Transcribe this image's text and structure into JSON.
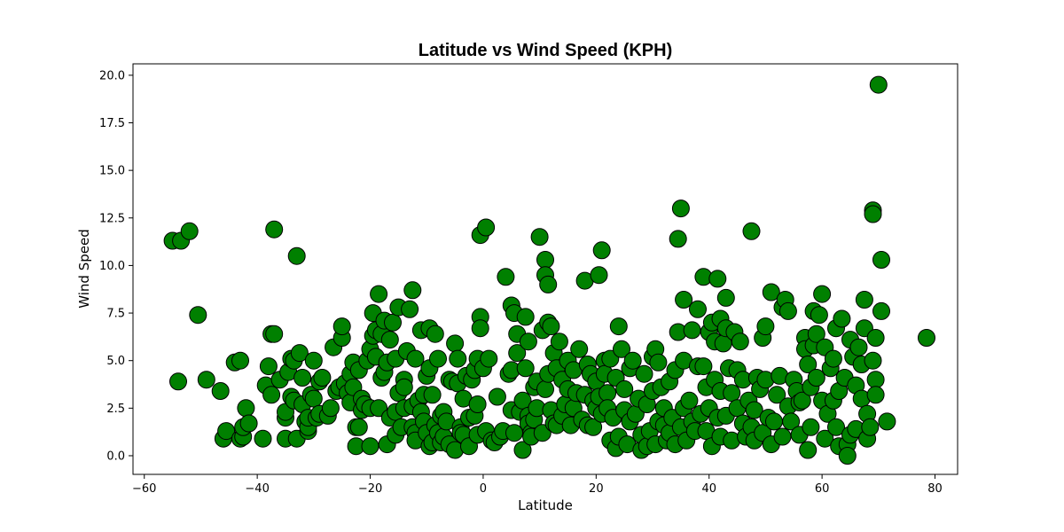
{
  "chart_data": {
    "type": "scatter",
    "title": "Latitude vs Wind Speed (KPH)",
    "xlabel": "Latitude",
    "ylabel": "Wind Speed",
    "xlim": [
      -62,
      84
    ],
    "ylim": [
      -0.98,
      20.6
    ],
    "x_ticks": [
      -60,
      -40,
      -20,
      0,
      20,
      40,
      60,
      80
    ],
    "x_tick_labels": [
      "−60",
      "−40",
      "−20",
      "0",
      "20",
      "40",
      "60",
      "80"
    ],
    "y_ticks": [
      0,
      2.5,
      5,
      7.5,
      10,
      12.5,
      15,
      17.5,
      20
    ],
    "y_tick_labels": [
      "0.0",
      "2.5",
      "5.0",
      "7.5",
      "10.0",
      "12.5",
      "15.0",
      "17.5",
      "20.0"
    ],
    "grid": false,
    "marker_color": "#008000",
    "marker_edge": "#000000",
    "points": [
      [
        -55,
        11.3
      ],
      [
        -53.5,
        11.3
      ],
      [
        -52,
        11.8
      ],
      [
        -54,
        3.9
      ],
      [
        -50.5,
        7.4
      ],
      [
        -49,
        4.0
      ],
      [
        -46.5,
        3.4
      ],
      [
        -46,
        0.9
      ],
      [
        -45.5,
        1.3
      ],
      [
        -44,
        4.9
      ],
      [
        -43,
        5.0
      ],
      [
        -43,
        0.9
      ],
      [
        -42.5,
        1.0
      ],
      [
        -42.5,
        1.5
      ],
      [
        -42,
        2.5
      ],
      [
        -41.5,
        1.7
      ],
      [
        -39,
        0.9
      ],
      [
        -38.5,
        3.7
      ],
      [
        -38,
        4.7
      ],
      [
        -37.5,
        6.4
      ],
      [
        -37,
        11.9
      ],
      [
        -37,
        6.4
      ],
      [
        -37.5,
        3.2
      ],
      [
        -36,
        4.0
      ],
      [
        -35,
        0.9
      ],
      [
        -35,
        2.0
      ],
      [
        -35,
        2.3
      ],
      [
        -34.5,
        4.4
      ],
      [
        -34,
        5.1
      ],
      [
        -34,
        3.1
      ],
      [
        -33.5,
        2.9
      ],
      [
        -33.5,
        5.0
      ],
      [
        -33,
        10.5
      ],
      [
        -33,
        0.9
      ],
      [
        -32.5,
        5.4
      ],
      [
        -32,
        2.7
      ],
      [
        -32,
        4.1
      ],
      [
        -31.5,
        1.8
      ],
      [
        -31,
        1.3
      ],
      [
        -31,
        1.5
      ],
      [
        -31,
        2.0
      ],
      [
        -30.5,
        3.2
      ],
      [
        -30,
        3.0
      ],
      [
        -30,
        5.0
      ],
      [
        -29.5,
        2.0
      ],
      [
        -29,
        2.2
      ],
      [
        -29,
        3.9
      ],
      [
        -28.5,
        4.1
      ],
      [
        -27.5,
        2.1
      ],
      [
        -27,
        2.5
      ],
      [
        -26.5,
        5.7
      ],
      [
        -26,
        3.4
      ],
      [
        -25.5,
        3.6
      ],
      [
        -25,
        6.2
      ],
      [
        -25,
        6.8
      ],
      [
        -24.5,
        3.8
      ],
      [
        -24,
        3.3
      ],
      [
        -23.5,
        2.8
      ],
      [
        -23.5,
        4.3
      ],
      [
        -23,
        4.9
      ],
      [
        -23,
        3.6
      ],
      [
        -22.5,
        1.5
      ],
      [
        -22.5,
        0.5
      ],
      [
        -22,
        1.5
      ],
      [
        -22,
        4.5
      ],
      [
        -21.5,
        3.0
      ],
      [
        -21.5,
        2.4
      ],
      [
        -21,
        2.7
      ],
      [
        -20.5,
        5.0
      ],
      [
        -20,
        0.5
      ],
      [
        -20,
        2.5
      ],
      [
        -20,
        5.6
      ],
      [
        -19.5,
        7.5
      ],
      [
        -19.5,
        6.3
      ],
      [
        -19,
        5.2
      ],
      [
        -19,
        6.6
      ],
      [
        -18.5,
        8.5
      ],
      [
        -18.5,
        2.5
      ],
      [
        -18,
        4.1
      ],
      [
        -18,
        6.4
      ],
      [
        -17.5,
        4.4
      ],
      [
        -17.5,
        7.1
      ],
      [
        -17,
        4.9
      ],
      [
        -17,
        0.6
      ],
      [
        -16.5,
        2.0
      ],
      [
        -16.5,
        6.1
      ],
      [
        -16,
        7.0
      ],
      [
        -15.5,
        2.3
      ],
      [
        -15.5,
        5.1
      ],
      [
        -15.5,
        1.1
      ],
      [
        -15,
        7.8
      ],
      [
        -15,
        3.3
      ],
      [
        -14.5,
        1.5
      ],
      [
        -14,
        2.5
      ],
      [
        -14,
        4.0
      ],
      [
        -14,
        3.6
      ],
      [
        -13.5,
        5.5
      ],
      [
        -13,
        7.7
      ],
      [
        -12.5,
        8.7
      ],
      [
        -12.5,
        2.6
      ],
      [
        -12.5,
        1.5
      ],
      [
        -12,
        1.2
      ],
      [
        -12,
        0.8
      ],
      [
        -12,
        5.1
      ],
      [
        -11.5,
        2.9
      ],
      [
        -11,
        6.6
      ],
      [
        -11,
        2.3
      ],
      [
        -10.5,
        3.2
      ],
      [
        -10.5,
        1.8
      ],
      [
        -10,
        4.2
      ],
      [
        -10,
        1.2
      ],
      [
        -9.5,
        0.5
      ],
      [
        -9.5,
        4.6
      ],
      [
        -9.5,
        6.7
      ],
      [
        -9,
        3.2
      ],
      [
        -9,
        0.7
      ],
      [
        -8.5,
        1.6
      ],
      [
        -8.5,
        6.4
      ],
      [
        -8,
        5.1
      ],
      [
        -8,
        1.2
      ],
      [
        -7.5,
        2.1
      ],
      [
        -7.5,
        0.7
      ],
      [
        -7,
        2.3
      ],
      [
        -7,
        1.0
      ],
      [
        -6.5,
        1.8
      ],
      [
        -6,
        4.0
      ],
      [
        -6,
        0.6
      ],
      [
        -5.5,
        3.9
      ],
      [
        -5,
        5.9
      ],
      [
        -5,
        0.3
      ],
      [
        -4.5,
        5.1
      ],
      [
        -4.5,
        3.8
      ],
      [
        -4,
        1.5
      ],
      [
        -4,
        1.2
      ],
      [
        -3.5,
        3.0
      ],
      [
        -3.5,
        1.1
      ],
      [
        -3,
        4.2
      ],
      [
        -2.5,
        2.0
      ],
      [
        -2.5,
        0.5
      ],
      [
        -2,
        4.0
      ],
      [
        -1.5,
        4.5
      ],
      [
        -1.5,
        2.1
      ],
      [
        -1,
        2.7
      ],
      [
        -1,
        5.1
      ],
      [
        -1,
        1.1
      ],
      [
        -0.5,
        11.6
      ],
      [
        -0.5,
        7.3
      ],
      [
        -0.5,
        6.7
      ],
      [
        0,
        4.6
      ],
      [
        0.5,
        12.0
      ],
      [
        0.5,
        1.3
      ],
      [
        1,
        5.1
      ],
      [
        1.5,
        0.8
      ],
      [
        2,
        0.7
      ],
      [
        2.5,
        3.1
      ],
      [
        3,
        1.0
      ],
      [
        3.5,
        1.3
      ],
      [
        4,
        9.4
      ],
      [
        4.5,
        4.3
      ],
      [
        5,
        2.4
      ],
      [
        5,
        4.5
      ],
      [
        5,
        7.9
      ],
      [
        5.5,
        1.2
      ],
      [
        5.5,
        7.5
      ],
      [
        6,
        6.4
      ],
      [
        6,
        5.4
      ],
      [
        6.5,
        2.3
      ],
      [
        7,
        2.9
      ],
      [
        7,
        0.3
      ],
      [
        7.5,
        4.6
      ],
      [
        7.5,
        7.3
      ],
      [
        8,
        2.1
      ],
      [
        8,
        1.7
      ],
      [
        8,
        6.0
      ],
      [
        8.5,
        1.2
      ],
      [
        8.5,
        1.0
      ],
      [
        9,
        3.6
      ],
      [
        9,
        1.9
      ],
      [
        9.5,
        2.5
      ],
      [
        9.5,
        3.9
      ],
      [
        10,
        11.5
      ],
      [
        10.5,
        6.6
      ],
      [
        10.5,
        1.2
      ],
      [
        11,
        10.3
      ],
      [
        11,
        9.5
      ],
      [
        11,
        3.5
      ],
      [
        11.5,
        7.0
      ],
      [
        11.5,
        9.0
      ],
      [
        11.5,
        4.3
      ],
      [
        12,
        6.8
      ],
      [
        12,
        2.4
      ],
      [
        12.5,
        1.7
      ],
      [
        12.5,
        5.4
      ],
      [
        13,
        4.6
      ],
      [
        13,
        1.6
      ],
      [
        13.5,
        6.0
      ],
      [
        14,
        4.0
      ],
      [
        14,
        2.1
      ],
      [
        14.5,
        2.7
      ],
      [
        15,
        5.0
      ],
      [
        15,
        3.5
      ],
      [
        15.5,
        1.6
      ],
      [
        16,
        2.5
      ],
      [
        16,
        4.5
      ],
      [
        16.5,
        3.3
      ],
      [
        17,
        5.6
      ],
      [
        17.5,
        1.9
      ],
      [
        18,
        9.2
      ],
      [
        18,
        3.2
      ],
      [
        18.5,
        4.8
      ],
      [
        18.5,
        1.6
      ],
      [
        19,
        4.3
      ],
      [
        19.5,
        2.9
      ],
      [
        19.5,
        1.5
      ],
      [
        20,
        2.5
      ],
      [
        20,
        3.9
      ],
      [
        20.5,
        9.5
      ],
      [
        20.5,
        3.1
      ],
      [
        21,
        10.8
      ],
      [
        21,
        2.2
      ],
      [
        21.5,
        5.0
      ],
      [
        21.5,
        4.3
      ],
      [
        22,
        3.3
      ],
      [
        22,
        2.5
      ],
      [
        22.5,
        5.1
      ],
      [
        22.5,
        0.8
      ],
      [
        23,
        2.0
      ],
      [
        23.5,
        4.1
      ],
      [
        23.5,
        0.4
      ],
      [
        24,
        6.8
      ],
      [
        24,
        1.0
      ],
      [
        24.5,
        5.6
      ],
      [
        25,
        3.5
      ],
      [
        25,
        2.4
      ],
      [
        25.5,
        0.6
      ],
      [
        26,
        4.6
      ],
      [
        26,
        1.8
      ],
      [
        26.5,
        5.0
      ],
      [
        27,
        2.2
      ],
      [
        27.5,
        3.0
      ],
      [
        28,
        0.3
      ],
      [
        28,
        1.1
      ],
      [
        28.5,
        4.3
      ],
      [
        29,
        2.7
      ],
      [
        29,
        0.5
      ],
      [
        29.5,
        1.3
      ],
      [
        30,
        5.2
      ],
      [
        30,
        3.4
      ],
      [
        30.5,
        5.6
      ],
      [
        30.5,
        0.6
      ],
      [
        31,
        1.8
      ],
      [
        31,
        4.9
      ],
      [
        31.5,
        3.6
      ],
      [
        32,
        2.5
      ],
      [
        32,
        1.6
      ],
      [
        32.5,
        0.8
      ],
      [
        33,
        3.9
      ],
      [
        33,
        1.2
      ],
      [
        33.5,
        2.0
      ],
      [
        34,
        4.5
      ],
      [
        34,
        0.6
      ],
      [
        34.5,
        11.4
      ],
      [
        34.5,
        6.5
      ],
      [
        35,
        13.0
      ],
      [
        35,
        1.5
      ],
      [
        35.5,
        8.2
      ],
      [
        35.5,
        5.0
      ],
      [
        35.5,
        2.5
      ],
      [
        36,
        0.8
      ],
      [
        36.5,
        2.9
      ],
      [
        37,
        6.6
      ],
      [
        37,
        1.8
      ],
      [
        37.5,
        1.3
      ],
      [
        38,
        7.7
      ],
      [
        38,
        4.7
      ],
      [
        38.5,
        2.2
      ],
      [
        39,
        9.4
      ],
      [
        39,
        4.7
      ],
      [
        39.5,
        3.6
      ],
      [
        39.5,
        1.3
      ],
      [
        40,
        2.5
      ],
      [
        40,
        6.5
      ],
      [
        40.5,
        7.0
      ],
      [
        40.5,
        0.5
      ],
      [
        41,
        6.0
      ],
      [
        41,
        4.0
      ],
      [
        41.5,
        9.3
      ],
      [
        41.5,
        2.0
      ],
      [
        42,
        7.2
      ],
      [
        42,
        3.4
      ],
      [
        42,
        1.0
      ],
      [
        42.5,
        5.9
      ],
      [
        43,
        8.3
      ],
      [
        43,
        6.7
      ],
      [
        43,
        2.1
      ],
      [
        43.5,
        4.6
      ],
      [
        44,
        3.3
      ],
      [
        44,
        0.8
      ],
      [
        44.5,
        6.5
      ],
      [
        45,
        4.5
      ],
      [
        45,
        2.5
      ],
      [
        45.5,
        6.0
      ],
      [
        46,
        1.7
      ],
      [
        46,
        4.0
      ],
      [
        46.5,
        1.0
      ],
      [
        47,
        2.9
      ],
      [
        47.5,
        11.8
      ],
      [
        47.5,
        1.5
      ],
      [
        48,
        0.8
      ],
      [
        48,
        2.4
      ],
      [
        48.5,
        4.1
      ],
      [
        49,
        3.5
      ],
      [
        49.5,
        6.2
      ],
      [
        49.5,
        1.2
      ],
      [
        50,
        6.8
      ],
      [
        50,
        4.0
      ],
      [
        50.5,
        2.0
      ],
      [
        51,
        0.6
      ],
      [
        51,
        8.6
      ],
      [
        51.5,
        1.8
      ],
      [
        52,
        3.2
      ],
      [
        52.5,
        4.2
      ],
      [
        53,
        7.8
      ],
      [
        53,
        1.0
      ],
      [
        53.5,
        8.2
      ],
      [
        54,
        2.6
      ],
      [
        54,
        7.6
      ],
      [
        54.5,
        1.8
      ],
      [
        55,
        4.0
      ],
      [
        55.5,
        3.4
      ],
      [
        56,
        2.8
      ],
      [
        56,
        1.1
      ],
      [
        56.5,
        2.9
      ],
      [
        57,
        6.2
      ],
      [
        57,
        5.6
      ],
      [
        57.5,
        4.8
      ],
      [
        57.5,
        0.3
      ],
      [
        58,
        1.5
      ],
      [
        58,
        3.6
      ],
      [
        58.5,
        7.6
      ],
      [
        58.5,
        5.8
      ],
      [
        59,
        4.1
      ],
      [
        59,
        6.4
      ],
      [
        59.5,
        7.4
      ],
      [
        60,
        8.5
      ],
      [
        60,
        2.9
      ],
      [
        60.5,
        0.9
      ],
      [
        60.5,
        5.7
      ],
      [
        61,
        2.2
      ],
      [
        61.5,
        4.6
      ],
      [
        62,
        2.9
      ],
      [
        62,
        5.1
      ],
      [
        62.5,
        1.5
      ],
      [
        62.5,
        6.7
      ],
      [
        63,
        3.4
      ],
      [
        63,
        0.5
      ],
      [
        63.5,
        7.2
      ],
      [
        64,
        4.1
      ],
      [
        64.5,
        0.6
      ],
      [
        64.5,
        0.0
      ],
      [
        65,
        1.1
      ],
      [
        65,
        6.1
      ],
      [
        65.5,
        5.2
      ],
      [
        66,
        1.4
      ],
      [
        66,
        3.7
      ],
      [
        66.5,
        5.7
      ],
      [
        67,
        3.0
      ],
      [
        67,
        4.8
      ],
      [
        67.5,
        8.2
      ],
      [
        67.5,
        6.7
      ],
      [
        68,
        2.2
      ],
      [
        68,
        0.9
      ],
      [
        68.5,
        1.5
      ],
      [
        69,
        12.9
      ],
      [
        69,
        12.7
      ],
      [
        69,
        5.0
      ],
      [
        69.5,
        4.0
      ],
      [
        69.5,
        3.2
      ],
      [
        69.5,
        6.2
      ],
      [
        70,
        19.5
      ],
      [
        70.5,
        10.3
      ],
      [
        70.5,
        7.6
      ],
      [
        71.5,
        1.8
      ],
      [
        78.5,
        6.2
      ]
    ]
  }
}
